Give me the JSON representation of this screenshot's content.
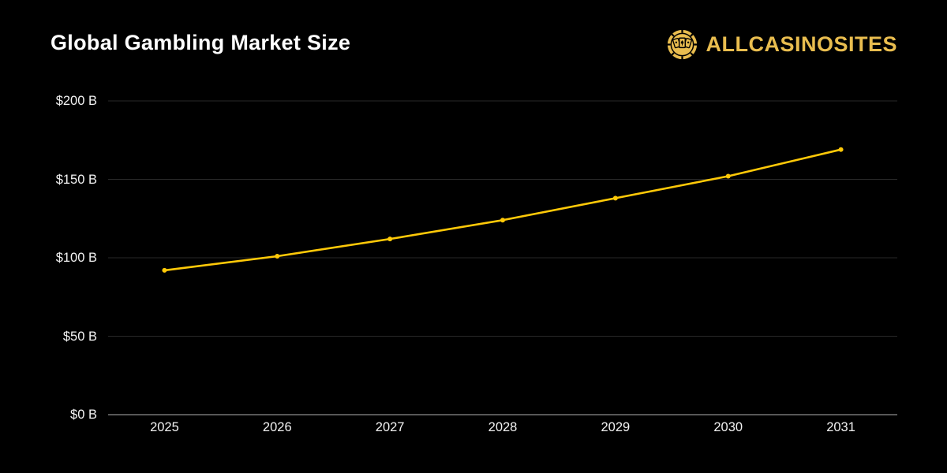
{
  "header": {
    "title": "Global Gambling Market Size",
    "logo": {
      "brand": "ALLCASINOSITES",
      "icon": "casino-chip-icon",
      "color": "#E9BD4F"
    }
  },
  "chart_data": {
    "type": "line",
    "title": "Global Gambling Market Size",
    "categories": [
      "2025",
      "2026",
      "2027",
      "2028",
      "2029",
      "2030",
      "2031"
    ],
    "series": [
      {
        "name": "Global Gambling Market Size",
        "values": [
          92,
          101,
          112,
          124,
          138,
          152,
          169
        ]
      }
    ],
    "units": "$B",
    "xlabel": "",
    "ylabel": "",
    "ylim": [
      0,
      200
    ],
    "yticks": [
      0,
      50,
      100,
      150,
      200
    ],
    "ytick_labels": [
      "$0 B",
      "$50 B",
      "$100 B",
      "$150 B",
      "$200 B"
    ],
    "legend": "none",
    "grid": "horizontal",
    "colors": {
      "background": "#000000",
      "line": "#FFC908",
      "gridline": "rgba(255,255,255,0.16)",
      "zero_axis": "rgba(255,255,255,0.55)",
      "tick_text": "#F2F2F2",
      "title_text": "#FFFFFF"
    },
    "marker": "dot"
  }
}
